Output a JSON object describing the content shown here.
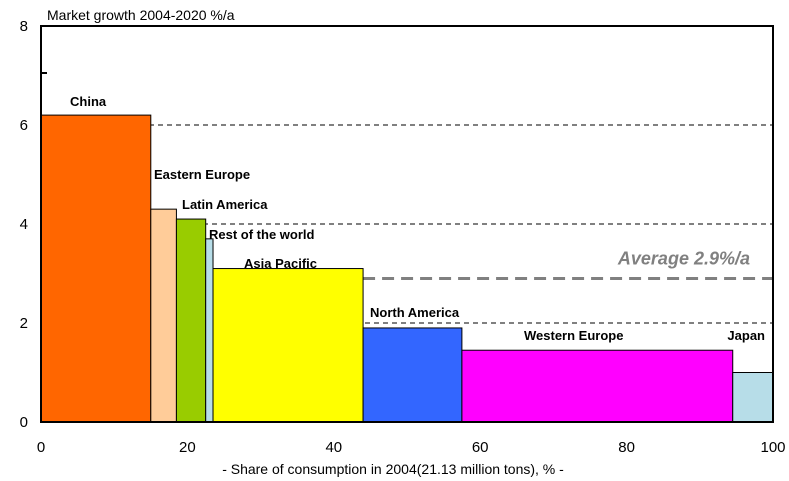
{
  "chart_data": {
    "type": "bar",
    "title": "Market growth  2004-2020 %/a",
    "xlabel": "- Share of consumption in 2004(21.13 million tons), % -",
    "ylabel": "",
    "xlim": [
      0,
      100
    ],
    "ylim": [
      0,
      8
    ],
    "x_ticks": [
      "0",
      "20",
      "40",
      "60",
      "80",
      "100"
    ],
    "y_ticks": [
      "0",
      "2",
      "4",
      "6",
      "8"
    ],
    "grid_lines_y": [
      2,
      4,
      6
    ],
    "grid": false,
    "legend": "none",
    "average": {
      "label": "Average 2.9%/a",
      "value": 2.9,
      "color": "#808080"
    },
    "bars": [
      {
        "category": "China",
        "share_start": 0,
        "share_end": 15,
        "growth": 6.2,
        "color": "#ff6600"
      },
      {
        "category": "Eastern Europe",
        "share_start": 15,
        "share_end": 18.5,
        "growth": 4.3,
        "color": "#ffcc99"
      },
      {
        "category": "Latin America",
        "share_start": 18.5,
        "share_end": 22.5,
        "growth": 4.1,
        "color": "#99cc00"
      },
      {
        "category": "Rest of the world",
        "share_start": 22.5,
        "share_end": 23.5,
        "growth": 3.7,
        "color": "#b7dde8"
      },
      {
        "category": "Asia Pacific",
        "share_start": 23.5,
        "share_end": 44,
        "growth": 3.1,
        "color": "#ffff00"
      },
      {
        "category": "North America",
        "share_start": 44,
        "share_end": 57.5,
        "growth": 1.9,
        "color": "#3366ff"
      },
      {
        "category": "Western Europe",
        "share_start": 57.5,
        "share_end": 94.5,
        "growth": 1.45,
        "color": "#ff00ff"
      },
      {
        "category": "Japan",
        "share_start": 94.5,
        "share_end": 100,
        "growth": 1.0,
        "color": "#b7dde8"
      }
    ]
  }
}
